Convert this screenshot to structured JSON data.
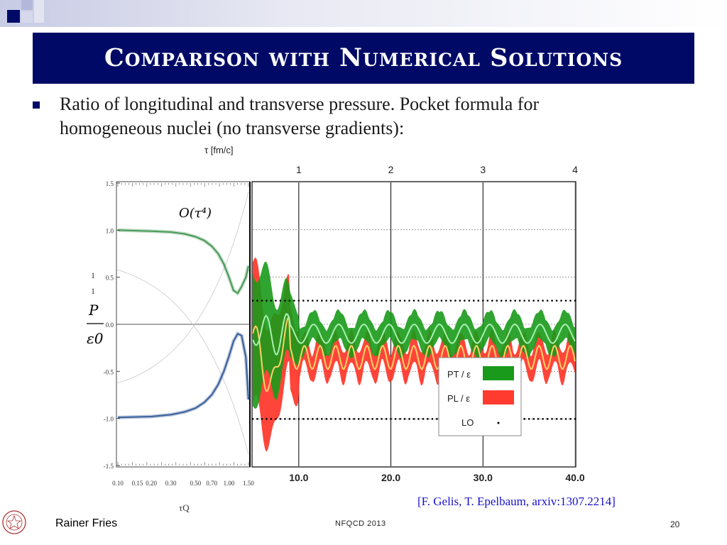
{
  "slide": {
    "title": "Comparison with Numerical Solutions",
    "bullet": "Ratio of longitudinal and transverse pressure. Pocket formula for homogeneous nuclei (no transverse gradients):",
    "citation": "[F. Gelis, T. Epelbaum, arxiv:1307.2214]",
    "footer_author": "Rainer Fries",
    "footer_event": "NFQCD 2013",
    "page_number": "20"
  },
  "colors": {
    "title_bg": "#000a66",
    "accent_green": "#2ca02c",
    "accent_red": "#ff3b2f",
    "citation": "#1a12c8"
  },
  "chart_data": [
    {
      "type": "line",
      "annotation": "O(τ⁴)",
      "xlabel": "τQ",
      "ylabel_num": "P",
      "ylabel_den": "ε0",
      "ylabel_ticks_extra": [
        "1",
        "1"
      ],
      "x_ticks": [
        "0.10",
        "0.15",
        "0.20",
        "0.30",
        "0.50",
        "0.70",
        "1.00",
        "1.50"
      ],
      "y_ticks": [
        "1.5",
        "1.0",
        "0.5",
        "0.0",
        "-0.5",
        "-1.0",
        "-1.5"
      ],
      "ylim": [
        -1.5,
        1.5
      ],
      "series": [
        {
          "color": "#4a9a5a",
          "x": [
            0.1,
            0.2,
            0.3,
            0.4,
            0.5,
            0.6,
            0.7,
            0.8,
            0.9,
            1.0,
            1.1,
            1.2,
            1.3,
            1.42,
            1.5
          ],
          "y": [
            1.0,
            0.99,
            0.98,
            0.96,
            0.93,
            0.89,
            0.83,
            0.75,
            0.64,
            0.5,
            0.36,
            0.33,
            0.4,
            0.5,
            0.62
          ]
        },
        {
          "color": "#3a5f9a",
          "x": [
            0.1,
            0.2,
            0.3,
            0.4,
            0.5,
            0.6,
            0.7,
            0.8,
            0.9,
            1.0,
            1.1,
            1.2,
            1.3,
            1.42,
            1.5
          ],
          "y": [
            -0.99,
            -0.98,
            -0.96,
            -0.93,
            -0.89,
            -0.83,
            -0.75,
            -0.64,
            -0.5,
            -0.34,
            -0.18,
            -0.1,
            -0.12,
            -0.35,
            -0.8
          ]
        }
      ]
    },
    {
      "type": "area",
      "top_axis_label": "τ [fm/c]",
      "top_ticks": [
        "1",
        "2",
        "3",
        "4"
      ],
      "bottom_ticks": [
        "10.0",
        "20.0",
        "30.0",
        "40.0"
      ],
      "legend": {
        "position": "bottom-right",
        "entries": [
          {
            "label": "PT / ε",
            "color": "#1a9a1a",
            "style": "band"
          },
          {
            "label": "PL / ε",
            "color": "#ff3b2f",
            "style": "band"
          },
          {
            "label": "LO",
            "color": "#000000",
            "style": "dots"
          }
        ]
      }
    }
  ]
}
